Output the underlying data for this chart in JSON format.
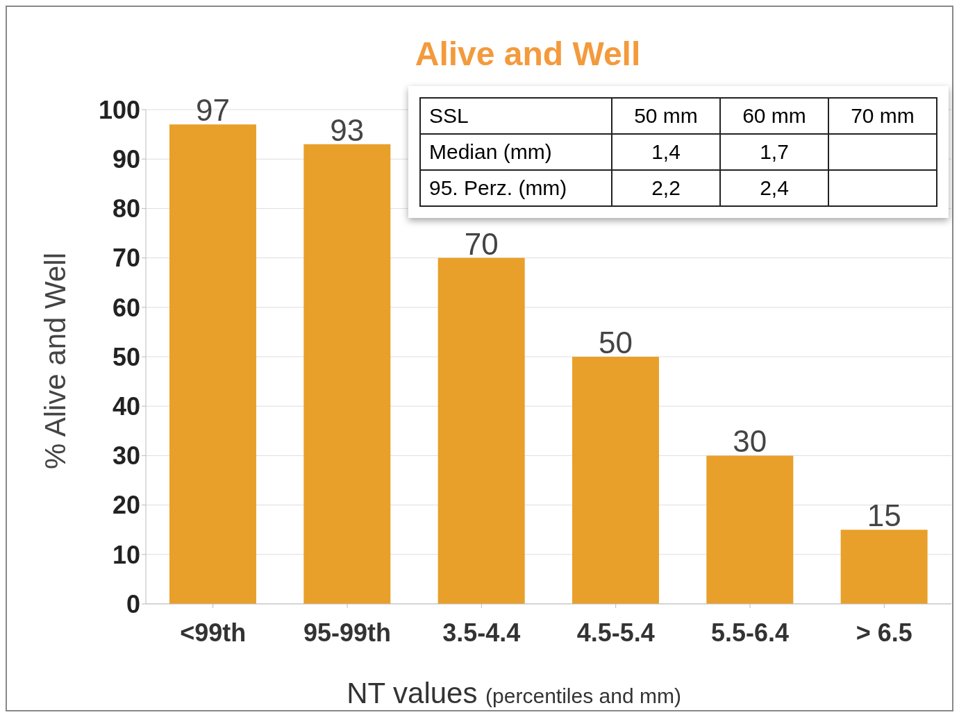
{
  "chart_data": {
    "type": "bar",
    "title": "Alive and Well",
    "xlabel": "NT values (percentiles and mm)",
    "ylabel": "% Alive and Well",
    "categories": [
      "<99th",
      "95-99th",
      "3.5-4.4",
      "4.5-5.4",
      "5.5-6.4",
      "> 6.5"
    ],
    "values": [
      97,
      93,
      70,
      50,
      30,
      15
    ],
    "color": "#e8a02a",
    "ylim": [
      0,
      100
    ],
    "yticks": [
      0,
      10,
      20,
      30,
      40,
      50,
      60,
      70,
      80,
      90,
      100
    ],
    "grid": "y",
    "data_labels": true,
    "annotations": [
      "SSL",
      "50 mm",
      "60 mm",
      "70 mm",
      "Median (mm)",
      "1,4",
      "1,7",
      "95. Perz. (mm)",
      "2,2",
      "2,4"
    ]
  }
}
